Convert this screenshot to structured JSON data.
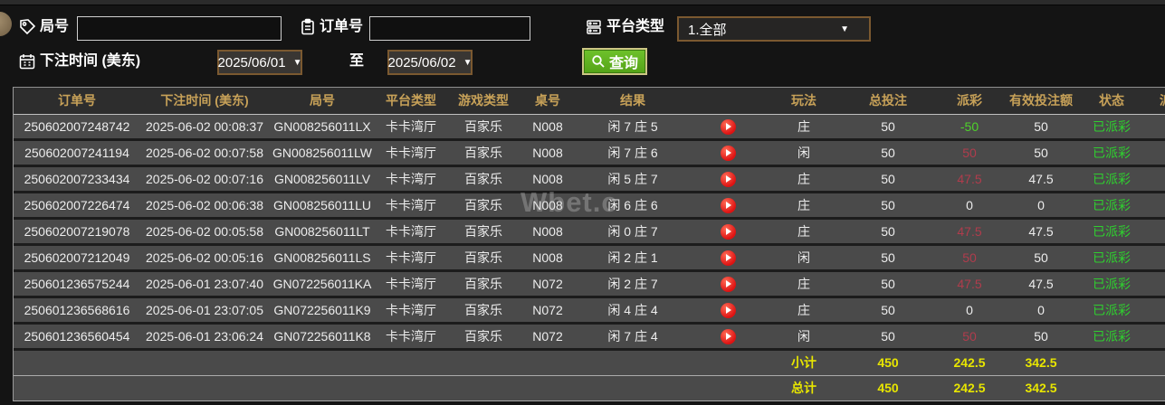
{
  "filters": {
    "round_label": "局号",
    "round_value": "",
    "order_label": "订单号",
    "order_value": "",
    "platform_label": "平台类型",
    "platform_value": "1.全部",
    "time_label": "下注时间 (美东)",
    "date_from": "2025/06/01",
    "to_label": "至",
    "date_to": "2025/06/02",
    "search_label": "查询"
  },
  "watermark": "Wbet.c",
  "colors": {
    "header_text": "#c7a158",
    "total_text": "#e8e600",
    "status_green": "#2fcf2f",
    "payout_green": "#4ed32a",
    "payout_red": "#b03c4c",
    "button_green": "#5fb321"
  },
  "table": {
    "headers": [
      "订单号",
      "下注时间 (美东)",
      "局号",
      "平台类型",
      "游戏类型",
      "桌号",
      "结果",
      "",
      "玩法",
      "总投注",
      "派彩",
      "有效投注额",
      "状态",
      "派"
    ],
    "rows": [
      {
        "order_id": "250602007248742",
        "bet_time": "2025-06-02 00:08:37",
        "round_id": "GN008256011LX",
        "platform": "卡卡湾厅",
        "game_type": "百家乐",
        "table_no": "N008",
        "result": "闲 7 庄 5",
        "play": "庄",
        "total_bet": "50",
        "payout": "-50",
        "payout_color": "green",
        "valid_bet": "50",
        "status": "已派彩"
      },
      {
        "order_id": "250602007241194",
        "bet_time": "2025-06-02 00:07:58",
        "round_id": "GN008256011LW",
        "platform": "卡卡湾厅",
        "game_type": "百家乐",
        "table_no": "N008",
        "result": "闲 7 庄 6",
        "play": "闲",
        "total_bet": "50",
        "payout": "50",
        "payout_color": "red",
        "valid_bet": "50",
        "status": "已派彩"
      },
      {
        "order_id": "250602007233434",
        "bet_time": "2025-06-02 00:07:16",
        "round_id": "GN008256011LV",
        "platform": "卡卡湾厅",
        "game_type": "百家乐",
        "table_no": "N008",
        "result": "闲 5 庄 7",
        "play": "庄",
        "total_bet": "50",
        "payout": "47.5",
        "payout_color": "red",
        "valid_bet": "47.5",
        "status": "已派彩"
      },
      {
        "order_id": "250602007226474",
        "bet_time": "2025-06-02 00:06:38",
        "round_id": "GN008256011LU",
        "platform": "卡卡湾厅",
        "game_type": "百家乐",
        "table_no": "N008",
        "result": "闲 6 庄 6",
        "play": "庄",
        "total_bet": "50",
        "payout": "0",
        "payout_color": "white",
        "valid_bet": "0",
        "status": "已派彩"
      },
      {
        "order_id": "250602007219078",
        "bet_time": "2025-06-02 00:05:58",
        "round_id": "GN008256011LT",
        "platform": "卡卡湾厅",
        "game_type": "百家乐",
        "table_no": "N008",
        "result": "闲 0 庄 7",
        "play": "庄",
        "total_bet": "50",
        "payout": "47.5",
        "payout_color": "red",
        "valid_bet": "47.5",
        "status": "已派彩"
      },
      {
        "order_id": "250602007212049",
        "bet_time": "2025-06-02 00:05:16",
        "round_id": "GN008256011LS",
        "platform": "卡卡湾厅",
        "game_type": "百家乐",
        "table_no": "N008",
        "result": "闲 2 庄 1",
        "play": "闲",
        "total_bet": "50",
        "payout": "50",
        "payout_color": "red",
        "valid_bet": "50",
        "status": "已派彩"
      },
      {
        "order_id": "250601236575244",
        "bet_time": "2025-06-01 23:07:40",
        "round_id": "GN072256011KA",
        "platform": "卡卡湾厅",
        "game_type": "百家乐",
        "table_no": "N072",
        "result": "闲 2 庄 7",
        "play": "庄",
        "total_bet": "50",
        "payout": "47.5",
        "payout_color": "red",
        "valid_bet": "47.5",
        "status": "已派彩"
      },
      {
        "order_id": "250601236568616",
        "bet_time": "2025-06-01 23:07:05",
        "round_id": "GN072256011K9",
        "platform": "卡卡湾厅",
        "game_type": "百家乐",
        "table_no": "N072",
        "result": "闲 4 庄 4",
        "play": "庄",
        "total_bet": "50",
        "payout": "0",
        "payout_color": "white",
        "valid_bet": "0",
        "status": "已派彩"
      },
      {
        "order_id": "250601236560454",
        "bet_time": "2025-06-01 23:06:24",
        "round_id": "GN072256011K8",
        "platform": "卡卡湾厅",
        "game_type": "百家乐",
        "table_no": "N072",
        "result": "闲 7 庄 4",
        "play": "闲",
        "total_bet": "50",
        "payout": "50",
        "payout_color": "red",
        "valid_bet": "50",
        "status": "已派彩"
      }
    ],
    "subtotal": {
      "label": "小计",
      "total_bet": "450",
      "payout": "242.5",
      "valid_bet": "342.5"
    },
    "grand_total": {
      "label": "总计",
      "total_bet": "450",
      "payout": "242.5",
      "valid_bet": "342.5"
    }
  }
}
